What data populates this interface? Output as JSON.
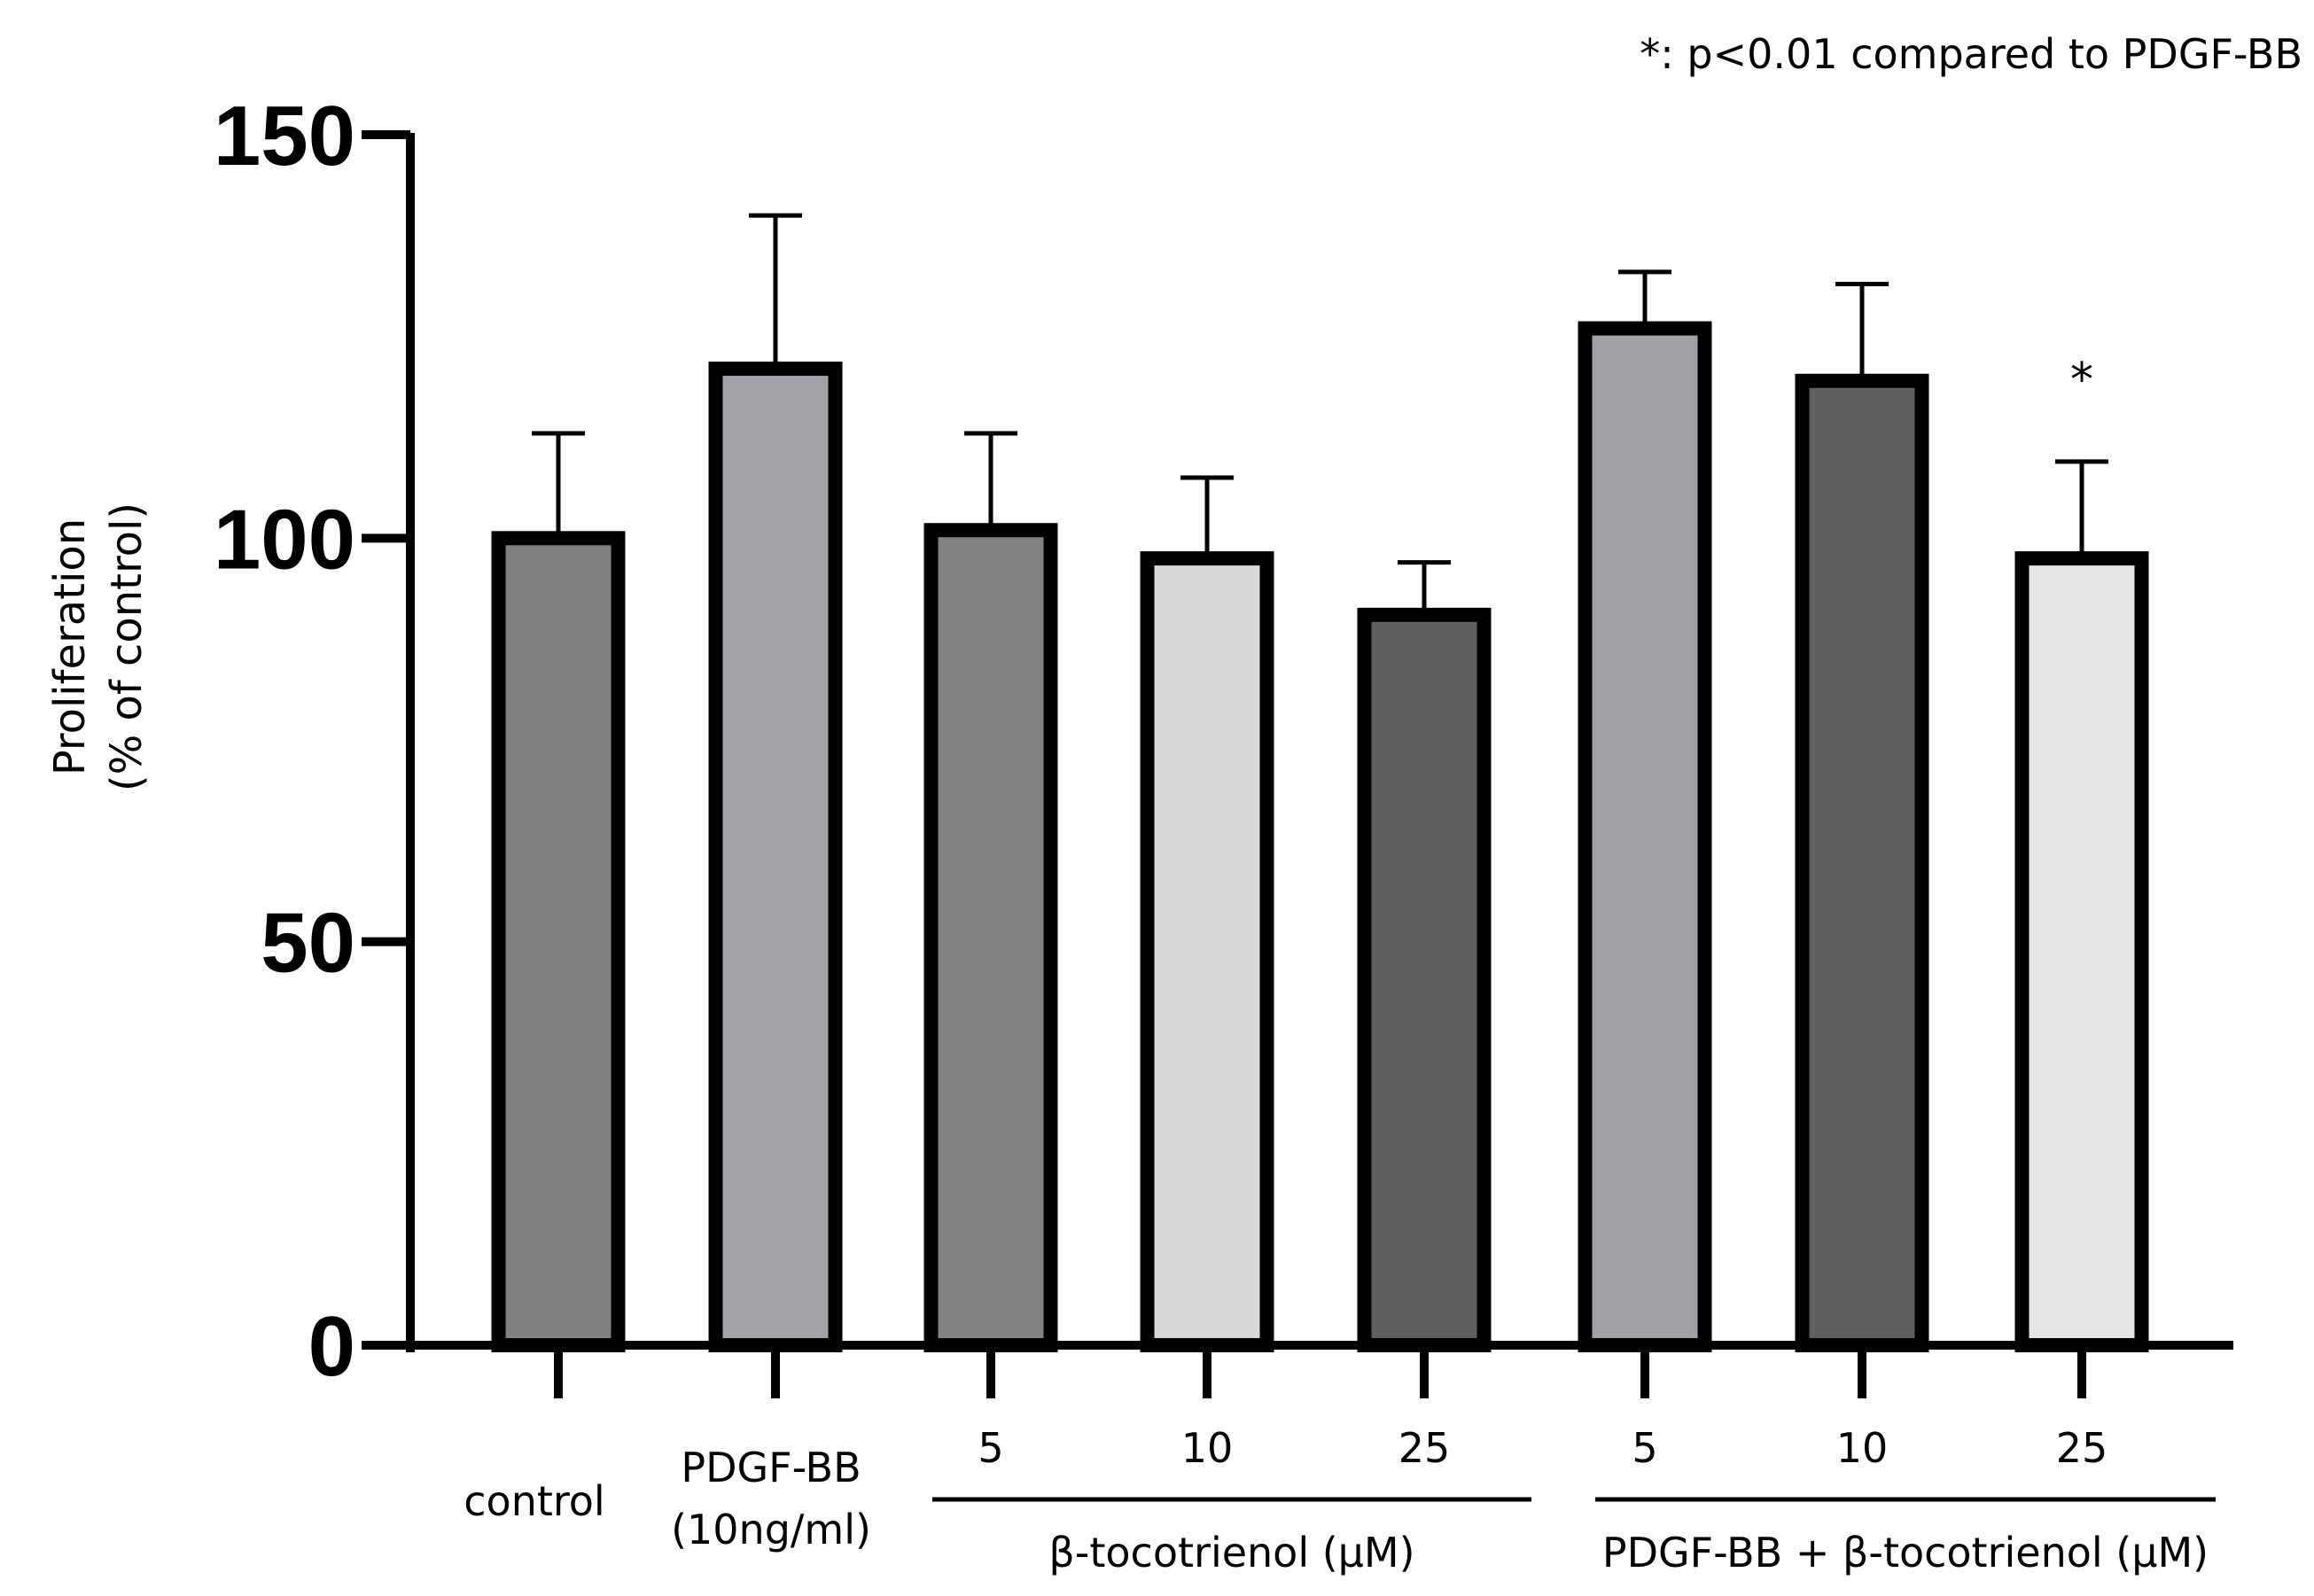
{
  "chart_data": {
    "type": "bar",
    "title": "",
    "xlabel": "",
    "ylabel_lines": [
      "Proliferation",
      "(% of control)"
    ],
    "ylim": [
      0,
      150
    ],
    "yticks": [
      0,
      50,
      100,
      150
    ],
    "ytick_labels": [
      "0",
      "50",
      "100",
      "150"
    ],
    "annotation": "*: p<0.01 compared to PDGF-BB",
    "categories": [
      {
        "id": "control",
        "lines": [
          "control"
        ]
      },
      {
        "id": "pdgf",
        "lines": [
          "PDGF-BB",
          "(10ng/ml)"
        ]
      },
      {
        "id": "b5",
        "lines": [
          "5"
        ]
      },
      {
        "id": "b10",
        "lines": [
          "10"
        ]
      },
      {
        "id": "b25",
        "lines": [
          "25"
        ]
      },
      {
        "id": "pb5",
        "lines": [
          "5"
        ]
      },
      {
        "id": "pb10",
        "lines": [
          "10"
        ]
      },
      {
        "id": "pb25",
        "lines": [
          "25"
        ]
      }
    ],
    "values": [
      100,
      121,
      101,
      97.5,
      90.5,
      126,
      119.5,
      97.5
    ],
    "errors": [
      13,
      19,
      12,
      10,
      6.5,
      7,
      12,
      12
    ],
    "significance": [
      "",
      "",
      "",
      "",
      "",
      "",
      "",
      "*"
    ],
    "colors": [
      "#808080",
      "#a3a2a7",
      "#838383",
      "#d8d8d6",
      "#606060",
      "#a2a1a6",
      "#5f5f5f",
      "#e6e6e6"
    ],
    "groups": [
      {
        "label": "β-tocotrienol (μM)",
        "from": 2,
        "to": 4
      },
      {
        "label": "PDGF-BB + β-tocotrienol (μM)",
        "from": 5,
        "to": 7
      }
    ]
  }
}
